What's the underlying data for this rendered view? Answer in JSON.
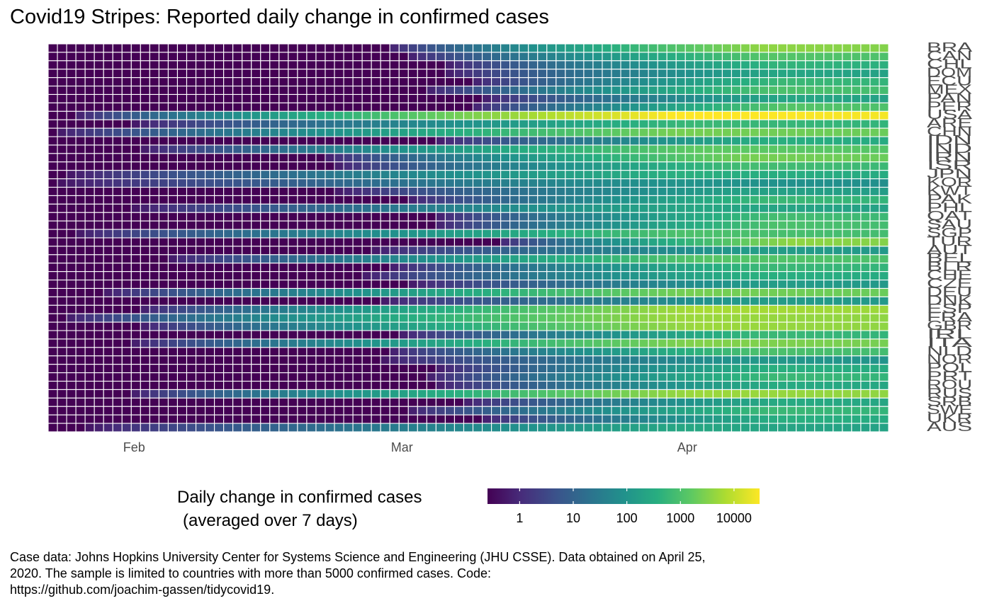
{
  "chart_data": {
    "type": "heatmap",
    "title": "Covid19 Stripes: Reported daily change in confirmed cases",
    "x_axis": {
      "start_date": "2020-01-23",
      "days": 91,
      "tick_labels": [
        {
          "label": "Feb",
          "day_index": 9
        },
        {
          "label": "Mar",
          "day_index": 38
        },
        {
          "label": "Apr",
          "day_index": 69
        }
      ]
    },
    "countries": [
      {
        "code": "BRA",
        "onset_day": 36,
        "peak_log10": 3.6
      },
      {
        "code": "CAN",
        "onset_day": 38,
        "peak_log10": 3.1
      },
      {
        "code": "CHL",
        "onset_day": 42,
        "peak_log10": 2.7
      },
      {
        "code": "DOM",
        "onset_day": 42,
        "peak_log10": 2.4
      },
      {
        "code": "ECU",
        "onset_day": 45,
        "peak_log10": 2.8
      },
      {
        "code": "MEX",
        "onset_day": 40,
        "peak_log10": 3.0
      },
      {
        "code": "PAN",
        "onset_day": 46,
        "peak_log10": 2.4
      },
      {
        "code": "PER",
        "onset_day": 45,
        "peak_log10": 3.1
      },
      {
        "code": "USA",
        "onset_day": 2,
        "peak_log10": 4.5
      },
      {
        "code": "ARE",
        "onset_day": 8,
        "peak_log10": 2.8
      },
      {
        "code": "CHN",
        "onset_day": 0,
        "peak_log10": 3.4
      },
      {
        "code": "IDN",
        "onset_day": 41,
        "peak_log10": 2.6
      },
      {
        "code": "IND",
        "onset_day": 9,
        "peak_log10": 3.2
      },
      {
        "code": "IRN",
        "onset_day": 29,
        "peak_log10": 3.4
      },
      {
        "code": "ISR",
        "onset_day": 30,
        "peak_log10": 2.9
      },
      {
        "code": "JPN",
        "onset_day": 1,
        "peak_log10": 2.6
      },
      {
        "code": "KOR",
        "onset_day": 0,
        "peak_log10": 2.0
      },
      {
        "code": "KWT",
        "onset_day": 30,
        "peak_log10": 2.3
      },
      {
        "code": "PAK",
        "onset_day": 38,
        "peak_log10": 2.8
      },
      {
        "code": "PHL",
        "onset_day": 8,
        "peak_log10": 2.4
      },
      {
        "code": "QAT",
        "onset_day": 41,
        "peak_log10": 2.9
      },
      {
        "code": "SAU",
        "onset_day": 41,
        "peak_log10": 3.0
      },
      {
        "code": "SGP",
        "onset_day": 2,
        "peak_log10": 3.0
      },
      {
        "code": "TUR",
        "onset_day": 48,
        "peak_log10": 3.6
      },
      {
        "code": "AUT",
        "onset_day": 34,
        "peak_log10": 2.2
      },
      {
        "code": "BEL",
        "onset_day": 12,
        "peak_log10": 3.1
      },
      {
        "code": "BLR",
        "onset_day": 36,
        "peak_log10": 2.8
      },
      {
        "code": "CHE",
        "onset_day": 33,
        "peak_log10": 2.6
      },
      {
        "code": "CZE",
        "onset_day": 38,
        "peak_log10": 2.2
      },
      {
        "code": "DEU",
        "onset_day": 5,
        "peak_log10": 3.4
      },
      {
        "code": "DNK",
        "onset_day": 35,
        "peak_log10": 2.2
      },
      {
        "code": "ESP",
        "onset_day": 9,
        "peak_log10": 3.8
      },
      {
        "code": "FRA",
        "onset_day": 1,
        "peak_log10": 3.7
      },
      {
        "code": "GBR",
        "onset_day": 9,
        "peak_log10": 3.7
      },
      {
        "code": "IRL",
        "onset_day": 37,
        "peak_log10": 2.8
      },
      {
        "code": "ITA",
        "onset_day": 8,
        "peak_log10": 3.5
      },
      {
        "code": "NLD",
        "onset_day": 36,
        "peak_log10": 3.0
      },
      {
        "code": "NOR",
        "onset_day": 35,
        "peak_log10": 2.1
      },
      {
        "code": "POL",
        "onset_day": 41,
        "peak_log10": 2.6
      },
      {
        "code": "PRT",
        "onset_day": 40,
        "peak_log10": 2.8
      },
      {
        "code": "ROU",
        "onset_day": 41,
        "peak_log10": 2.5
      },
      {
        "code": "RUS",
        "onset_day": 8,
        "peak_log10": 3.7
      },
      {
        "code": "SRB",
        "onset_day": 44,
        "peak_log10": 2.5
      },
      {
        "code": "SWE",
        "onset_day": 38,
        "peak_log10": 2.8
      },
      {
        "code": "UKR",
        "onset_day": 46,
        "peak_log10": 2.6
      },
      {
        "code": "AUS",
        "onset_day": 3,
        "peak_log10": 2.4
      }
    ],
    "legend": {
      "title_line1": "Daily change in confirmed cases",
      "title_line2": "(averaged over 7 days)",
      "ticks": [
        "1",
        "10",
        "100",
        "1000",
        "10000"
      ],
      "tick_values": [
        1,
        10,
        100,
        1000,
        10000
      ],
      "max_value": 30000,
      "colors": [
        "#440154",
        "#472d7b",
        "#3b528b",
        "#2c728e",
        "#21918c",
        "#28ae80",
        "#5ec962",
        "#addc30",
        "#fde725"
      ]
    },
    "caption_lines": [
      "Case data: Johns Hopkins University Center for Systems Science and Engineering (JHU CSSE). Data obtained on April 25,",
      "2020. The sample is limited to countries with more than 5000 confirmed cases. Code:",
      "https://github.com/joachim-gassen/tidycovid19."
    ]
  }
}
